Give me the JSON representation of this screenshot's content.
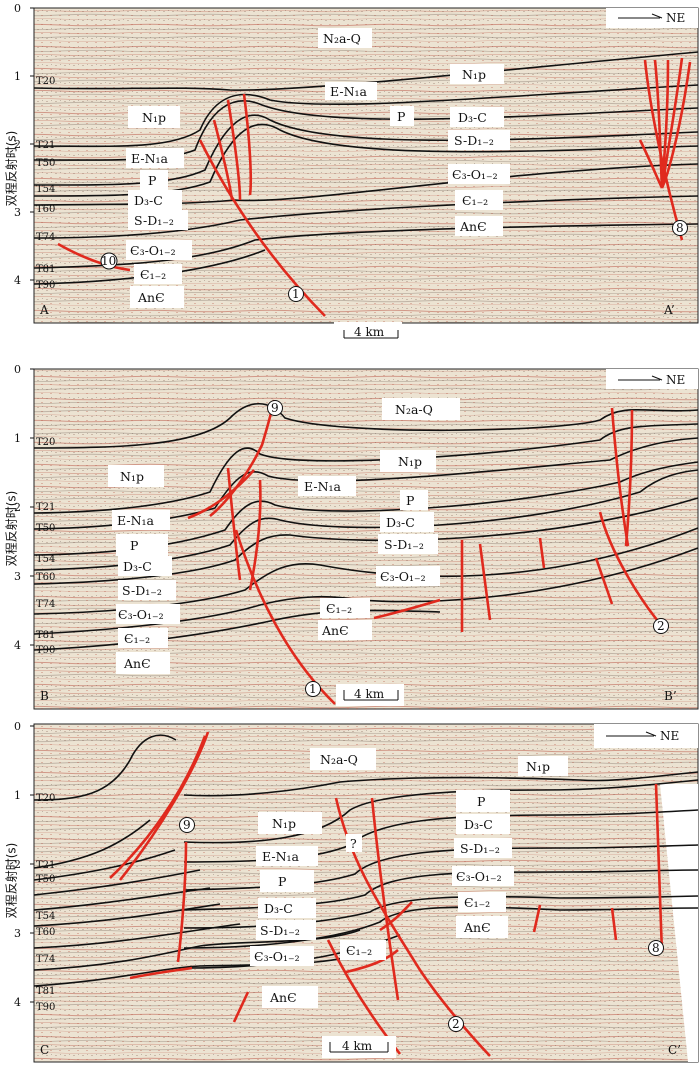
{
  "axis_label": "双程反射时(s)",
  "direction_label": "NE",
  "scale_bar": "4 km",
  "panels": [
    {
      "id": "A",
      "left_label": "A",
      "right_label": "A’",
      "y_ticks": [
        "0",
        "1",
        "2",
        "3",
        "4"
      ],
      "horizons": [
        "T20",
        "T21",
        "T50",
        "T54",
        "T60",
        "T74",
        "T81",
        "T90"
      ],
      "formations": [
        "N₂a-Q",
        "E-N₁a",
        "N₁p",
        "P",
        "D₃-C",
        "S-D₁₋₂",
        "N₁p",
        "E-N₁a",
        "P",
        "D₃-C",
        "S-D₁₋₂",
        "Є₃-O₁₋₂",
        "Є₁₋₂",
        "AnЄ",
        "Є₃-O₁₋₂",
        "Є₁₋₂",
        "AnЄ"
      ],
      "faults": [
        "1",
        "8",
        "10"
      ]
    },
    {
      "id": "B",
      "left_label": "B",
      "right_label": "B’",
      "y_ticks": [
        "0",
        "1",
        "2",
        "3",
        "4"
      ],
      "horizons": [
        "T20",
        "T21",
        "T50",
        "T54",
        "T60",
        "T74",
        "T81",
        "T90"
      ],
      "formations": [
        "N₂a-Q",
        "N₁p",
        "N₁p",
        "E-N₁a",
        "E-N₁a",
        "P",
        "P",
        "D₃-C",
        "D₃-C",
        "S-D₁₋₂",
        "S-D₁₋₂",
        "Є₃-O₁₋₂",
        "Є₃-O₁₋₂",
        "Є₁₋₂",
        "Є₁₋₂",
        "AnЄ",
        "AnЄ"
      ],
      "faults": [
        "9",
        "1",
        "2"
      ]
    },
    {
      "id": "C",
      "left_label": "C",
      "right_label": "C’",
      "y_ticks": [
        "0",
        "1",
        "2",
        "3",
        "4"
      ],
      "horizons": [
        "T20",
        "T21",
        "T50",
        "T54",
        "T60",
        "T74",
        "T81",
        "T90"
      ],
      "formations": [
        "N₂a-Q",
        "N₁p",
        "N₁p",
        "E-N₁a",
        "P",
        "D₃-C",
        "S-D₁₋₂",
        "Є₃-O₁₋₂",
        "P",
        "D₃-C",
        "S-D₁₋₂",
        "Є₃-O₁₋₂",
        "Є₁₋₂",
        "AnЄ",
        "Є₁₋₂",
        "AnЄ",
        "?"
      ],
      "faults": [
        "9",
        "2",
        "8"
      ]
    }
  ],
  "colors": {
    "fault": "#e02a1e",
    "horizon": "#111111",
    "seismic_bg": "#ece3d2",
    "seismic_light": "#e3d6c0",
    "seismic_red": "#bb5a4a",
    "seismic_dark": "#5a4a3e"
  }
}
